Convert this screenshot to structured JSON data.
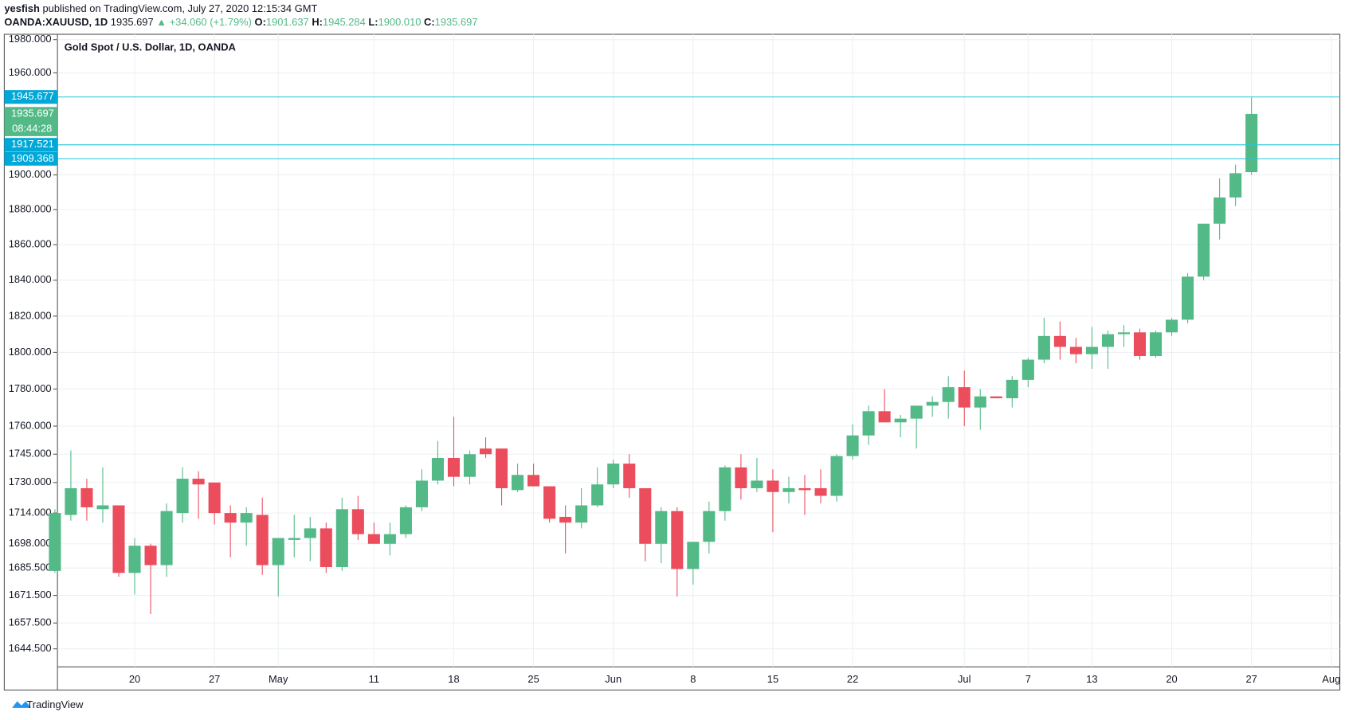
{
  "header": {
    "author": "yesfish",
    "published": "published on TradingView.com, July 27, 2020 12:15:34 GMT",
    "symbol": "OANDA:XAUUSD, 1D",
    "last": "1935.697",
    "change": "▲ +34.060 (+1.79%)",
    "o_label": "O:",
    "o": "1901.637",
    "h_label": "H:",
    "h": "1945.284",
    "l_label": "L:",
    "l": "1900.010",
    "c_label": "C:",
    "c": "1935.697"
  },
  "footer": "TradingView",
  "chart_data": {
    "type": "candlestick",
    "title": "Gold Spot / U.S. Dollar, 1D, OANDA",
    "log_scale": true,
    "grid": true,
    "up_color": "#53b987",
    "down_color": "#eb4d5c",
    "line_color": "#26c6da",
    "label_color": "#00a8d8",
    "ylim": [
      1635.5,
      1983.2
    ],
    "yticks": [
      {
        "value": 1980,
        "label": "1980.000"
      },
      {
        "value": 1960,
        "label": "1960.000"
      },
      {
        "value": 1900,
        "label": "1900.000"
      },
      {
        "value": 1880,
        "label": "1880.000"
      },
      {
        "value": 1860,
        "label": "1860.000"
      },
      {
        "value": 1840,
        "label": "1840.000"
      },
      {
        "value": 1820,
        "label": "1820.000"
      },
      {
        "value": 1800,
        "label": "1800.000"
      },
      {
        "value": 1780,
        "label": "1780.000"
      },
      {
        "value": 1760,
        "label": "1760.000"
      },
      {
        "value": 1745,
        "label": "1745.000"
      },
      {
        "value": 1730,
        "label": "1730.000"
      },
      {
        "value": 1714,
        "label": "1714.000"
      },
      {
        "value": 1698,
        "label": "1698.000"
      },
      {
        "value": 1685.5,
        "label": "1685.500"
      },
      {
        "value": 1671.5,
        "label": "1671.500"
      },
      {
        "value": 1657.5,
        "label": "1657.500"
      },
      {
        "value": 1644.5,
        "label": "1644.500"
      }
    ],
    "hlines": [
      1945.677,
      1917.521,
      1909.368
    ],
    "last_price": 1935.697,
    "countdown": "08:44:28",
    "categories": [
      null,
      null,
      null,
      null,
      null,
      "20",
      null,
      null,
      null,
      null,
      "27",
      null,
      null,
      null,
      "May",
      null,
      null,
      null,
      null,
      null,
      "11",
      null,
      null,
      null,
      null,
      "18",
      null,
      null,
      null,
      null,
      "25",
      null,
      null,
      null,
      null,
      "Jun",
      null,
      null,
      null,
      null,
      "8",
      null,
      null,
      null,
      null,
      "15",
      null,
      null,
      null,
      null,
      "22",
      null,
      null,
      null,
      null,
      null,
      null,
      "Jul",
      null,
      null,
      null,
      "7",
      null,
      null,
      null,
      "13",
      null,
      null,
      null,
      null,
      "20",
      null,
      null,
      null,
      null,
      "27",
      null,
      null,
      null,
      null,
      "Aug"
    ],
    "open": [
      1684,
      1713,
      1727,
      1716,
      1718,
      1683,
      1697,
      1687,
      1714,
      1732,
      1730,
      1714,
      1709,
      1713,
      1687,
      1700,
      1701,
      1706,
      1686,
      1716,
      1703,
      1698,
      1703,
      1717,
      1731,
      1743,
      1733,
      1748,
      1748,
      1726,
      1734,
      1728,
      1712,
      1709,
      1718,
      1729,
      1740,
      1727,
      1698,
      1715,
      1685,
      1699,
      1715,
      1738,
      1727,
      1731,
      1725,
      1727,
      1727,
      1723,
      1744,
      1755,
      1768,
      1762,
      1764,
      1771,
      1773,
      1781,
      1770,
      1776,
      1775,
      1785,
      1796,
      1809,
      1803,
      1799,
      1803,
      1810,
      1811,
      1798,
      1811,
      1818,
      1842,
      1872,
      1887,
      1901.637,
      null,
      null,
      null,
      null,
      null
    ],
    "high": [
      1716,
      1747,
      1732,
      1738,
      1718,
      1701,
      1698,
      1719,
      1738,
      1736,
      1730,
      1718,
      1717,
      1722,
      1701,
      1713,
      1712,
      1709,
      1722,
      1723,
      1709,
      1709,
      1718,
      1737,
      1752,
      1765,
      1747,
      1754,
      1748,
      1740,
      1740,
      1728,
      1718,
      1727,
      1738,
      1742,
      1745,
      1727,
      1717,
      1717,
      1699,
      1720,
      1739,
      1745,
      1743,
      1737,
      1733,
      1734,
      1737,
      1745,
      1761,
      1771,
      1780,
      1766,
      1771,
      1776,
      1787,
      1790,
      1780,
      1776,
      1787,
      1797,
      1819,
      1817,
      1808,
      1814,
      1812,
      1815,
      1813,
      1812,
      1819,
      1844,
      1872,
      1898,
      1906,
      1945.284,
      null,
      null,
      null,
      null,
      null
    ],
    "low": [
      1683,
      1710,
      1710,
      1709,
      1681,
      1672,
      1662,
      1681,
      1709,
      1711,
      1708,
      1691,
      1697,
      1682,
      1671,
      1691,
      1689,
      1683,
      1684,
      1700,
      1698,
      1692,
      1701,
      1715,
      1729,
      1728,
      1729,
      1743,
      1718,
      1725,
      1728,
      1709,
      1693,
      1706,
      1717,
      1727,
      1722,
      1689,
      1688,
      1671,
      1677,
      1693,
      1710,
      1721,
      1725,
      1704,
      1719,
      1713,
      1719,
      1720,
      1742,
      1750,
      1762,
      1754,
      1748,
      1765,
      1764,
      1760,
      1758,
      1775,
      1770,
      1781,
      1794,
      1796,
      1794,
      1791,
      1791,
      1803,
      1796,
      1797,
      1809,
      1816,
      1840,
      1863,
      1882,
      1900.01,
      null,
      null,
      null,
      null,
      null
    ],
    "close": [
      1714,
      1727,
      1717,
      1718,
      1683,
      1697,
      1687,
      1715,
      1732,
      1729,
      1714,
      1709,
      1714,
      1687,
      1701,
      1701,
      1706,
      1686,
      1716,
      1703,
      1698,
      1703,
      1717,
      1731,
      1743,
      1733,
      1745,
      1745,
      1727,
      1734,
      1728,
      1711,
      1709,
      1718,
      1729,
      1740,
      1727,
      1698,
      1715,
      1685,
      1699,
      1715,
      1738,
      1727,
      1731,
      1725,
      1727,
      1726,
      1723,
      1744,
      1755,
      1768,
      1762,
      1764,
      1771,
      1773,
      1781,
      1770,
      1776,
      1775,
      1785,
      1796,
      1809,
      1803,
      1799,
      1803,
      1810,
      1811,
      1798,
      1811,
      1818,
      1842,
      1872,
      1887,
      1901,
      1935.697,
      null,
      null,
      null,
      null,
      null
    ]
  }
}
